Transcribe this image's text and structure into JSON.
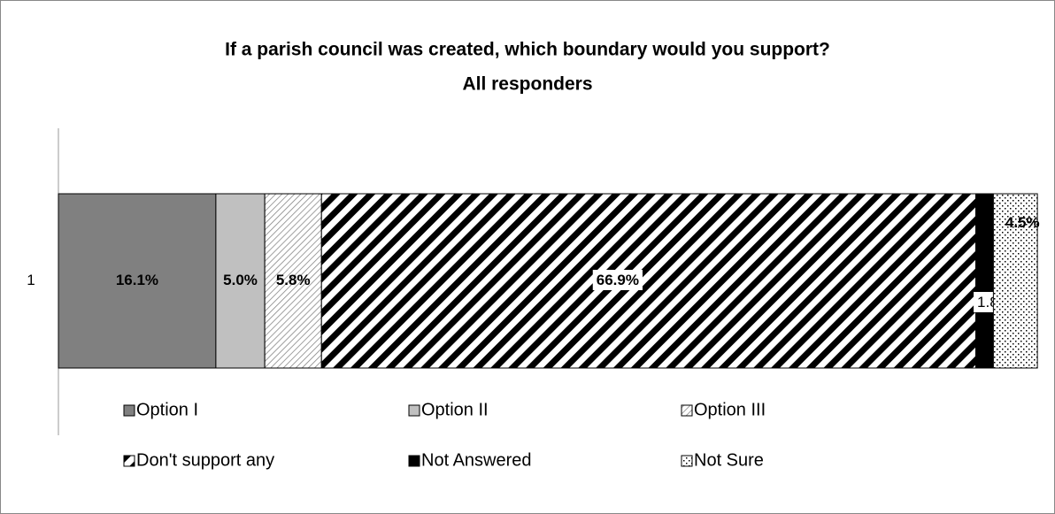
{
  "chart_data": {
    "type": "stacked-bar-horizontal",
    "title": "If a parish council was created, which boundary would you support?",
    "subtitle": "All responders",
    "categories": [
      "1"
    ],
    "xlim": [
      0,
      100
    ],
    "series": [
      {
        "name": "Option I",
        "color": "#808080",
        "pattern": "solid",
        "values": [
          16.1
        ],
        "value_labels": [
          "16.1%"
        ]
      },
      {
        "name": "Option II",
        "color": "#c0c0c0",
        "pattern": "solid",
        "values": [
          5.0
        ],
        "value_labels": [
          "5.0%"
        ]
      },
      {
        "name": "Option III",
        "color": "#808080",
        "pattern": "light-diagonal",
        "values": [
          5.8
        ],
        "value_labels": [
          "5.8%"
        ]
      },
      {
        "name": "Don't support any",
        "color": "#000000",
        "pattern": "wide-diagonal",
        "values": [
          66.9
        ],
        "value_labels": [
          "66.9%"
        ]
      },
      {
        "name": "Not Answered",
        "color": "#000000",
        "pattern": "solid",
        "values": [
          1.8
        ],
        "value_labels": [
          "1.8%"
        ]
      },
      {
        "name": "Not Sure",
        "color": "#000000",
        "pattern": "dots",
        "values": [
          4.5
        ],
        "value_labels": [
          "4.5%"
        ]
      }
    ]
  }
}
